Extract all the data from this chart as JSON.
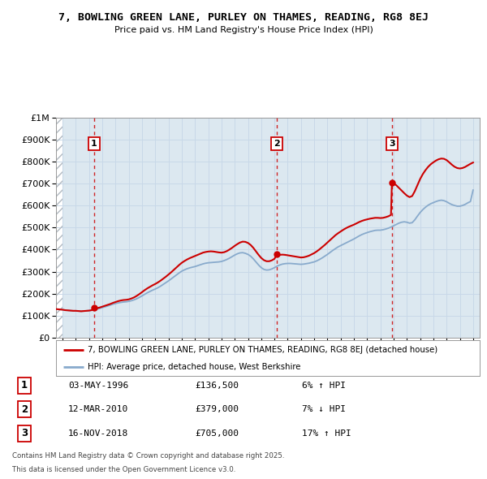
{
  "title": "7, BOWLING GREEN LANE, PURLEY ON THAMES, READING, RG8 8EJ",
  "subtitle": "Price paid vs. HM Land Registry's House Price Index (HPI)",
  "legend_line1": "7, BOWLING GREEN LANE, PURLEY ON THAMES, READING, RG8 8EJ (detached house)",
  "legend_line2": "HPI: Average price, detached house, West Berkshire",
  "footer1": "Contains HM Land Registry data © Crown copyright and database right 2025.",
  "footer2": "This data is licensed under the Open Government Licence v3.0.",
  "sales": [
    {
      "label": "1",
      "date": "03-MAY-1996",
      "price": 136500,
      "year": 1996.37,
      "pct": "6%",
      "dir": "↑"
    },
    {
      "label": "2",
      "date": "12-MAR-2010",
      "price": 379000,
      "year": 2010.19,
      "pct": "7%",
      "dir": "↓"
    },
    {
      "label": "3",
      "date": "16-NOV-2018",
      "price": 705000,
      "year": 2018.87,
      "pct": "17%",
      "dir": "↑"
    }
  ],
  "ylim": [
    0,
    1000000
  ],
  "yticks": [
    0,
    100000,
    200000,
    300000,
    400000,
    500000,
    600000,
    700000,
    800000,
    900000,
    1000000
  ],
  "ytick_labels": [
    "£0",
    "£100K",
    "£200K",
    "£300K",
    "£400K",
    "£500K",
    "£600K",
    "£700K",
    "£800K",
    "£900K",
    "£1M"
  ],
  "xlim": [
    1993.5,
    2025.5
  ],
  "xticks": [
    1994,
    1995,
    1996,
    1997,
    1998,
    1999,
    2000,
    2001,
    2002,
    2003,
    2004,
    2005,
    2006,
    2007,
    2008,
    2009,
    2010,
    2011,
    2012,
    2013,
    2014,
    2015,
    2016,
    2017,
    2018,
    2019,
    2020,
    2021,
    2022,
    2023,
    2024,
    2025
  ],
  "red_color": "#cc0000",
  "blue_color": "#88aacc",
  "grid_color": "#c8d8e8",
  "plot_bg": "#dce8f0",
  "hpi_data": [
    [
      1993.5,
      130000
    ],
    [
      1994.0,
      127000
    ],
    [
      1994.2,
      125000
    ],
    [
      1994.4,
      124000
    ],
    [
      1994.6,
      123000
    ],
    [
      1994.8,
      122000
    ],
    [
      1995.0,
      122000
    ],
    [
      1995.2,
      121000
    ],
    [
      1995.4,
      120000
    ],
    [
      1995.6,
      121000
    ],
    [
      1995.8,
      122000
    ],
    [
      1996.0,
      123000
    ],
    [
      1996.2,
      125000
    ],
    [
      1996.4,
      127000
    ],
    [
      1996.6,
      130000
    ],
    [
      1996.8,
      133000
    ],
    [
      1997.0,
      137000
    ],
    [
      1997.2,
      140000
    ],
    [
      1997.4,
      144000
    ],
    [
      1997.6,
      148000
    ],
    [
      1997.8,
      152000
    ],
    [
      1998.0,
      155000
    ],
    [
      1998.2,
      158000
    ],
    [
      1998.4,
      160000
    ],
    [
      1998.6,
      162000
    ],
    [
      1998.8,
      163000
    ],
    [
      1999.0,
      165000
    ],
    [
      1999.2,
      168000
    ],
    [
      1999.4,
      172000
    ],
    [
      1999.6,
      177000
    ],
    [
      1999.8,
      183000
    ],
    [
      2000.0,
      190000
    ],
    [
      2000.2,
      197000
    ],
    [
      2000.4,
      204000
    ],
    [
      2000.6,
      210000
    ],
    [
      2000.8,
      216000
    ],
    [
      2001.0,
      221000
    ],
    [
      2001.2,
      227000
    ],
    [
      2001.4,
      234000
    ],
    [
      2001.6,
      242000
    ],
    [
      2001.8,
      250000
    ],
    [
      2002.0,
      258000
    ],
    [
      2002.2,
      267000
    ],
    [
      2002.4,
      276000
    ],
    [
      2002.6,
      285000
    ],
    [
      2002.8,
      294000
    ],
    [
      2003.0,
      302000
    ],
    [
      2003.2,
      308000
    ],
    [
      2003.4,
      313000
    ],
    [
      2003.6,
      317000
    ],
    [
      2003.8,
      320000
    ],
    [
      2004.0,
      323000
    ],
    [
      2004.2,
      327000
    ],
    [
      2004.4,
      331000
    ],
    [
      2004.6,
      335000
    ],
    [
      2004.8,
      338000
    ],
    [
      2005.0,
      340000
    ],
    [
      2005.2,
      341000
    ],
    [
      2005.4,
      342000
    ],
    [
      2005.6,
      343000
    ],
    [
      2005.8,
      344000
    ],
    [
      2006.0,
      346000
    ],
    [
      2006.2,
      350000
    ],
    [
      2006.4,
      355000
    ],
    [
      2006.6,
      361000
    ],
    [
      2006.8,
      368000
    ],
    [
      2007.0,
      375000
    ],
    [
      2007.2,
      381000
    ],
    [
      2007.4,
      385000
    ],
    [
      2007.6,
      386000
    ],
    [
      2007.8,
      383000
    ],
    [
      2008.0,
      378000
    ],
    [
      2008.2,
      370000
    ],
    [
      2008.4,
      358000
    ],
    [
      2008.6,
      344000
    ],
    [
      2008.8,
      330000
    ],
    [
      2009.0,
      318000
    ],
    [
      2009.2,
      310000
    ],
    [
      2009.4,
      307000
    ],
    [
      2009.6,
      308000
    ],
    [
      2009.8,
      312000
    ],
    [
      2010.0,
      318000
    ],
    [
      2010.2,
      325000
    ],
    [
      2010.4,
      330000
    ],
    [
      2010.6,
      334000
    ],
    [
      2010.8,
      336000
    ],
    [
      2011.0,
      337000
    ],
    [
      2011.2,
      337000
    ],
    [
      2011.4,
      336000
    ],
    [
      2011.6,
      335000
    ],
    [
      2011.8,
      334000
    ],
    [
      2012.0,
      333000
    ],
    [
      2012.2,
      334000
    ],
    [
      2012.4,
      336000
    ],
    [
      2012.6,
      338000
    ],
    [
      2012.8,
      341000
    ],
    [
      2013.0,
      344000
    ],
    [
      2013.2,
      349000
    ],
    [
      2013.4,
      355000
    ],
    [
      2013.6,
      362000
    ],
    [
      2013.8,
      370000
    ],
    [
      2014.0,
      378000
    ],
    [
      2014.2,
      387000
    ],
    [
      2014.4,
      396000
    ],
    [
      2014.6,
      404000
    ],
    [
      2014.8,
      412000
    ],
    [
      2015.0,
      418000
    ],
    [
      2015.2,
      424000
    ],
    [
      2015.4,
      430000
    ],
    [
      2015.6,
      436000
    ],
    [
      2015.8,
      442000
    ],
    [
      2016.0,
      448000
    ],
    [
      2016.2,
      455000
    ],
    [
      2016.4,
      462000
    ],
    [
      2016.6,
      468000
    ],
    [
      2016.8,
      473000
    ],
    [
      2017.0,
      477000
    ],
    [
      2017.2,
      481000
    ],
    [
      2017.4,
      484000
    ],
    [
      2017.6,
      487000
    ],
    [
      2017.8,
      488000
    ],
    [
      2018.0,
      488000
    ],
    [
      2018.2,
      490000
    ],
    [
      2018.4,
      493000
    ],
    [
      2018.6,
      497000
    ],
    [
      2018.8,
      502000
    ],
    [
      2019.0,
      508000
    ],
    [
      2019.2,
      514000
    ],
    [
      2019.4,
      520000
    ],
    [
      2019.6,
      524000
    ],
    [
      2019.8,
      526000
    ],
    [
      2020.0,
      524000
    ],
    [
      2020.2,
      520000
    ],
    [
      2020.4,
      522000
    ],
    [
      2020.6,
      535000
    ],
    [
      2020.8,
      552000
    ],
    [
      2021.0,
      568000
    ],
    [
      2021.2,
      581000
    ],
    [
      2021.4,
      592000
    ],
    [
      2021.6,
      601000
    ],
    [
      2021.8,
      608000
    ],
    [
      2022.0,
      613000
    ],
    [
      2022.2,
      618000
    ],
    [
      2022.4,
      622000
    ],
    [
      2022.6,
      624000
    ],
    [
      2022.8,
      622000
    ],
    [
      2023.0,
      617000
    ],
    [
      2023.2,
      610000
    ],
    [
      2023.4,
      604000
    ],
    [
      2023.6,
      600000
    ],
    [
      2023.8,
      597000
    ],
    [
      2024.0,
      597000
    ],
    [
      2024.2,
      600000
    ],
    [
      2024.4,
      605000
    ],
    [
      2024.6,
      612000
    ],
    [
      2024.8,
      618000
    ],
    [
      2025.0,
      670000
    ]
  ],
  "price_data": [
    [
      1993.5,
      130000
    ],
    [
      1994.0,
      127000
    ],
    [
      1994.2,
      125000
    ],
    [
      1994.4,
      124000
    ],
    [
      1994.6,
      123000
    ],
    [
      1994.8,
      122000
    ],
    [
      1995.0,
      122000
    ],
    [
      1995.2,
      121000
    ],
    [
      1995.4,
      120000
    ],
    [
      1995.6,
      121000
    ],
    [
      1995.8,
      122000
    ],
    [
      1996.0,
      123000
    ],
    [
      1996.2,
      125000
    ],
    [
      1996.37,
      136500
    ],
    [
      1996.4,
      131000
    ],
    [
      1996.6,
      134000
    ],
    [
      1996.8,
      137000
    ],
    [
      1997.0,
      141000
    ],
    [
      1997.2,
      145000
    ],
    [
      1997.4,
      149000
    ],
    [
      1997.6,
      153000
    ],
    [
      1997.8,
      158000
    ],
    [
      1998.0,
      162000
    ],
    [
      1998.2,
      166000
    ],
    [
      1998.4,
      169000
    ],
    [
      1998.6,
      171000
    ],
    [
      1998.8,
      172000
    ],
    [
      1999.0,
      174000
    ],
    [
      1999.2,
      178000
    ],
    [
      1999.4,
      183000
    ],
    [
      1999.6,
      190000
    ],
    [
      1999.8,
      198000
    ],
    [
      2000.0,
      207000
    ],
    [
      2000.2,
      216000
    ],
    [
      2000.4,
      224000
    ],
    [
      2000.6,
      231000
    ],
    [
      2000.8,
      238000
    ],
    [
      2001.0,
      244000
    ],
    [
      2001.2,
      251000
    ],
    [
      2001.4,
      259000
    ],
    [
      2001.6,
      268000
    ],
    [
      2001.8,
      277000
    ],
    [
      2002.0,
      287000
    ],
    [
      2002.2,
      297000
    ],
    [
      2002.4,
      308000
    ],
    [
      2002.6,
      319000
    ],
    [
      2002.8,
      330000
    ],
    [
      2003.0,
      340000
    ],
    [
      2003.2,
      348000
    ],
    [
      2003.4,
      355000
    ],
    [
      2003.6,
      361000
    ],
    [
      2003.8,
      366000
    ],
    [
      2004.0,
      371000
    ],
    [
      2004.2,
      376000
    ],
    [
      2004.4,
      381000
    ],
    [
      2004.6,
      386000
    ],
    [
      2004.8,
      389000
    ],
    [
      2005.0,
      391000
    ],
    [
      2005.2,
      392000
    ],
    [
      2005.4,
      391000
    ],
    [
      2005.6,
      389000
    ],
    [
      2005.8,
      387000
    ],
    [
      2006.0,
      386000
    ],
    [
      2006.2,
      388000
    ],
    [
      2006.4,
      393000
    ],
    [
      2006.6,
      400000
    ],
    [
      2006.8,
      408000
    ],
    [
      2007.0,
      417000
    ],
    [
      2007.2,
      425000
    ],
    [
      2007.4,
      432000
    ],
    [
      2007.6,
      436000
    ],
    [
      2007.8,
      435000
    ],
    [
      2008.0,
      430000
    ],
    [
      2008.2,
      421000
    ],
    [
      2008.4,
      408000
    ],
    [
      2008.6,
      392000
    ],
    [
      2008.8,
      376000
    ],
    [
      2009.0,
      362000
    ],
    [
      2009.2,
      352000
    ],
    [
      2009.4,
      347000
    ],
    [
      2009.6,
      347000
    ],
    [
      2009.8,
      351000
    ],
    [
      2010.0,
      358000
    ],
    [
      2010.19,
      379000
    ],
    [
      2010.2,
      375000
    ],
    [
      2010.4,
      376000
    ],
    [
      2010.6,
      377000
    ],
    [
      2010.8,
      376000
    ],
    [
      2011.0,
      374000
    ],
    [
      2011.2,
      372000
    ],
    [
      2011.4,
      370000
    ],
    [
      2011.6,
      368000
    ],
    [
      2011.8,
      366000
    ],
    [
      2012.0,
      364000
    ],
    [
      2012.2,
      365000
    ],
    [
      2012.4,
      368000
    ],
    [
      2012.6,
      372000
    ],
    [
      2012.8,
      378000
    ],
    [
      2013.0,
      384000
    ],
    [
      2013.2,
      392000
    ],
    [
      2013.4,
      401000
    ],
    [
      2013.6,
      411000
    ],
    [
      2013.8,
      421000
    ],
    [
      2014.0,
      432000
    ],
    [
      2014.2,
      443000
    ],
    [
      2014.4,
      454000
    ],
    [
      2014.6,
      465000
    ],
    [
      2014.8,
      474000
    ],
    [
      2015.0,
      482000
    ],
    [
      2015.2,
      490000
    ],
    [
      2015.4,
      497000
    ],
    [
      2015.6,
      503000
    ],
    [
      2015.8,
      508000
    ],
    [
      2016.0,
      513000
    ],
    [
      2016.2,
      519000
    ],
    [
      2016.4,
      525000
    ],
    [
      2016.6,
      530000
    ],
    [
      2016.8,
      534000
    ],
    [
      2017.0,
      537000
    ],
    [
      2017.2,
      540000
    ],
    [
      2017.4,
      542000
    ],
    [
      2017.6,
      544000
    ],
    [
      2017.8,
      544000
    ],
    [
      2018.0,
      543000
    ],
    [
      2018.2,
      544000
    ],
    [
      2018.4,
      547000
    ],
    [
      2018.6,
      551000
    ],
    [
      2018.8,
      557000
    ],
    [
      2018.87,
      705000
    ],
    [
      2019.0,
      700000
    ],
    [
      2019.2,
      692000
    ],
    [
      2019.4,
      680000
    ],
    [
      2019.6,
      668000
    ],
    [
      2019.8,
      656000
    ],
    [
      2020.0,
      645000
    ],
    [
      2020.2,
      638000
    ],
    [
      2020.4,
      643000
    ],
    [
      2020.6,
      665000
    ],
    [
      2020.8,
      693000
    ],
    [
      2021.0,
      720000
    ],
    [
      2021.2,
      742000
    ],
    [
      2021.4,
      760000
    ],
    [
      2021.6,
      775000
    ],
    [
      2021.8,
      787000
    ],
    [
      2022.0,
      796000
    ],
    [
      2022.2,
      804000
    ],
    [
      2022.4,
      810000
    ],
    [
      2022.6,
      813000
    ],
    [
      2022.8,
      812000
    ],
    [
      2023.0,
      806000
    ],
    [
      2023.2,
      796000
    ],
    [
      2023.4,
      785000
    ],
    [
      2023.6,
      776000
    ],
    [
      2023.8,
      770000
    ],
    [
      2024.0,
      768000
    ],
    [
      2024.2,
      770000
    ],
    [
      2024.4,
      775000
    ],
    [
      2024.6,
      782000
    ],
    [
      2024.8,
      789000
    ],
    [
      2025.0,
      795000
    ]
  ]
}
